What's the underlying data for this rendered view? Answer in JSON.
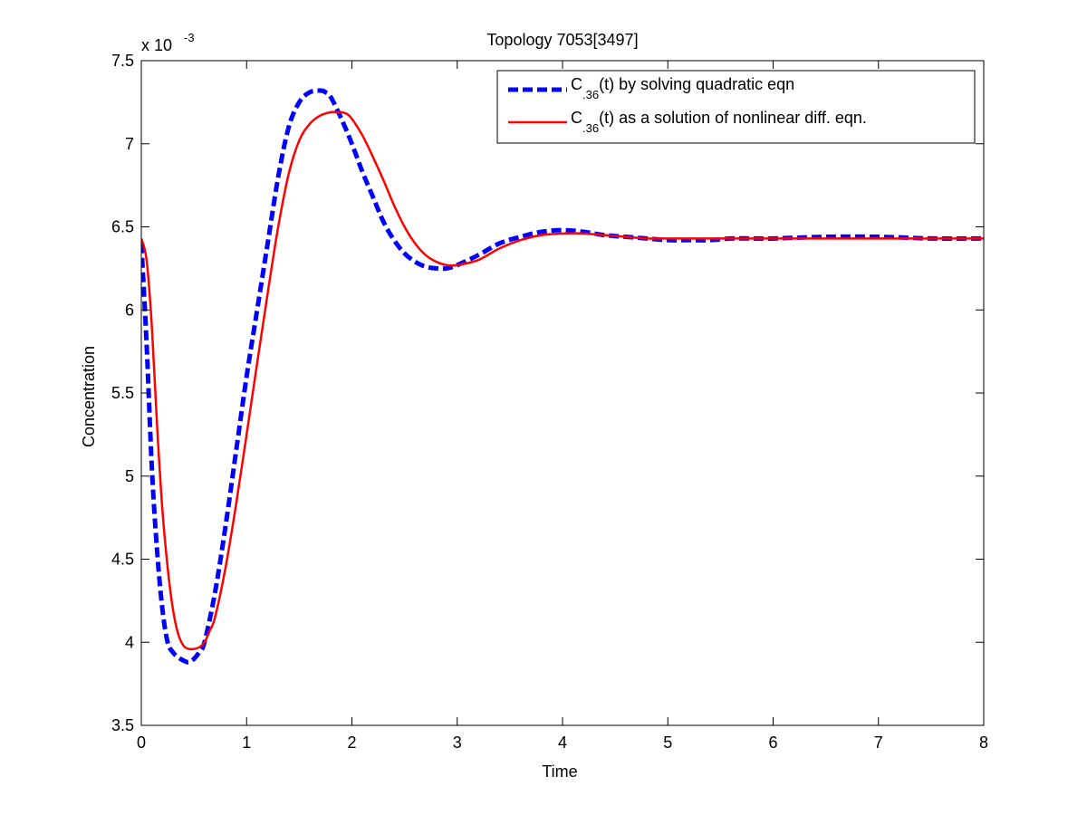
{
  "chart_data": {
    "type": "line",
    "title": "Topology 7053[3497]",
    "xlabel": "Time",
    "ylabel": "Concentration",
    "y_exponent_prefix": "x 10",
    "y_exponent": "-3",
    "xlim": [
      0,
      8
    ],
    "ylim": [
      3.5,
      7.5
    ],
    "x_ticks": [
      0,
      1,
      2,
      3,
      4,
      5,
      6,
      7,
      8
    ],
    "y_ticks": [
      3.5,
      4,
      4.5,
      5,
      5.5,
      6,
      6.5,
      7,
      7.5
    ],
    "x_tick_labels": [
      "0",
      "1",
      "2",
      "3",
      "4",
      "5",
      "6",
      "7",
      "8"
    ],
    "y_tick_labels": [
      "3.5",
      "4",
      "4.5",
      "5",
      "5.5",
      "6",
      "6.5",
      "7",
      "7.5"
    ],
    "grid": false,
    "legend_position": "top-right",
    "series": [
      {
        "name": "C.36(t) by solving quadratic eqn",
        "legend_prefix": "C",
        "legend_sub": ".36",
        "legend_suffix": "(t) by solving quadratic eqn",
        "color": "#0000ff",
        "style": "dashed",
        "x": [
          0,
          0.05,
          0.1,
          0.15,
          0.2,
          0.25,
          0.3,
          0.35,
          0.4,
          0.45,
          0.5,
          0.55,
          0.6,
          0.7,
          0.8,
          0.9,
          1.0,
          1.1,
          1.2,
          1.3,
          1.4,
          1.5,
          1.6,
          1.7,
          1.75,
          1.8,
          1.9,
          2.0,
          2.1,
          2.2,
          2.3,
          2.4,
          2.5,
          2.6,
          2.7,
          2.8,
          2.9,
          3.0,
          3.2,
          3.4,
          3.6,
          3.8,
          4.0,
          4.2,
          4.4,
          4.6,
          4.8,
          5.0,
          5.2,
          5.4,
          5.6,
          5.8,
          6.0,
          6.5,
          7.0,
          7.5,
          8.0
        ],
        "y": [
          6.4,
          5.8,
          5.05,
          4.55,
          4.2,
          4.0,
          3.94,
          3.91,
          3.89,
          3.88,
          3.9,
          3.94,
          4.0,
          4.3,
          4.7,
          5.15,
          5.6,
          6.0,
          6.4,
          6.8,
          7.1,
          7.25,
          7.31,
          7.32,
          7.31,
          7.28,
          7.15,
          7.0,
          6.83,
          6.68,
          6.53,
          6.42,
          6.34,
          6.29,
          6.26,
          6.25,
          6.25,
          6.27,
          6.33,
          6.4,
          6.44,
          6.47,
          6.48,
          6.47,
          6.45,
          6.44,
          6.43,
          6.42,
          6.42,
          6.42,
          6.43,
          6.43,
          6.43,
          6.44,
          6.44,
          6.43,
          6.43
        ]
      },
      {
        "name": "C.36(t) as a solution of nonlinear diff. eqn.",
        "legend_prefix": "C",
        "legend_sub": ".36",
        "legend_suffix": "(t) as a solution of nonlinear diff. eqn.",
        "color": "#ff0000",
        "style": "solid",
        "x": [
          0,
          0.05,
          0.1,
          0.15,
          0.2,
          0.25,
          0.3,
          0.35,
          0.4,
          0.45,
          0.5,
          0.55,
          0.6,
          0.65,
          0.7,
          0.8,
          0.9,
          1.0,
          1.1,
          1.2,
          1.3,
          1.4,
          1.5,
          1.6,
          1.7,
          1.8,
          1.85,
          1.9,
          1.95,
          2.0,
          2.1,
          2.2,
          2.3,
          2.4,
          2.5,
          2.6,
          2.7,
          2.8,
          2.9,
          3.0,
          3.2,
          3.4,
          3.6,
          3.8,
          4.0,
          4.2,
          4.4,
          4.6,
          4.8,
          5.0,
          5.2,
          5.4,
          5.6,
          5.8,
          6.0,
          6.5,
          7.0,
          7.5,
          8.0
        ],
        "y": [
          6.43,
          6.3,
          5.9,
          5.3,
          4.8,
          4.45,
          4.2,
          4.05,
          3.98,
          3.96,
          3.96,
          3.97,
          4.0,
          4.07,
          4.15,
          4.45,
          4.83,
          5.25,
          5.68,
          6.1,
          6.5,
          6.82,
          7.02,
          7.12,
          7.17,
          7.19,
          7.19,
          7.19,
          7.18,
          7.15,
          7.05,
          6.92,
          6.78,
          6.63,
          6.5,
          6.4,
          6.33,
          6.29,
          6.27,
          6.27,
          6.3,
          6.37,
          6.42,
          6.45,
          6.46,
          6.46,
          6.45,
          6.44,
          6.43,
          6.43,
          6.43,
          6.43,
          6.43,
          6.43,
          6.43,
          6.43,
          6.43,
          6.43,
          6.43
        ]
      }
    ]
  }
}
